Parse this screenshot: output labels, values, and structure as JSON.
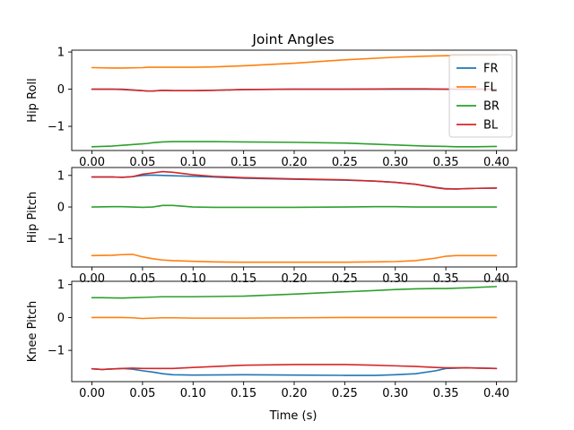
{
  "figure": {
    "title": "Joint Angles",
    "xlabel": "Time (s)"
  },
  "chart_data": [
    {
      "type": "line",
      "ylabel": "Hip Roll",
      "xlim": [
        -0.02,
        0.42
      ],
      "ylim": [
        -1.65,
        1.05
      ],
      "xticks": [
        0.0,
        0.05,
        0.1,
        0.15,
        0.2,
        0.25,
        0.3,
        0.35,
        0.4
      ],
      "xtick_labels": [
        "0.00",
        "0.05",
        "0.10",
        "0.15",
        "0.20",
        "0.25",
        "0.30",
        "0.35",
        "0.40"
      ],
      "yticks": [
        1,
        0,
        -1
      ],
      "ytick_labels": [
        "1",
        "0",
        "−1"
      ],
      "legend": {
        "position": "right",
        "entries": [
          "FR",
          "FL",
          "BR",
          "BL"
        ]
      },
      "x": [
        0.0,
        0.02,
        0.03,
        0.05,
        0.055,
        0.06,
        0.07,
        0.08,
        0.1,
        0.12,
        0.15,
        0.2,
        0.25,
        0.3,
        0.33,
        0.35,
        0.36,
        0.38,
        0.4
      ],
      "series": [
        {
          "name": "FR",
          "color": "#1f77b4",
          "values": [
            0.0,
            0.0,
            0.0,
            -0.04,
            -0.05,
            -0.05,
            -0.03,
            -0.04,
            -0.04,
            -0.03,
            -0.01,
            0.0,
            0.0,
            0.0,
            0.0,
            0.0,
            0.0,
            0.0,
            0.0
          ]
        },
        {
          "name": "FL",
          "color": "#ff7f0e",
          "values": [
            0.58,
            0.57,
            0.57,
            0.58,
            0.59,
            0.59,
            0.59,
            0.59,
            0.59,
            0.6,
            0.63,
            0.7,
            0.79,
            0.86,
            0.89,
            0.9,
            0.91,
            0.92,
            0.92
          ]
        },
        {
          "name": "BR",
          "color": "#2ca02c",
          "values": [
            -1.55,
            -1.53,
            -1.51,
            -1.47,
            -1.46,
            -1.44,
            -1.42,
            -1.41,
            -1.41,
            -1.41,
            -1.42,
            -1.43,
            -1.45,
            -1.5,
            -1.53,
            -1.54,
            -1.55,
            -1.55,
            -1.54
          ]
        },
        {
          "name": "BL",
          "color": "#d62728",
          "values": [
            0.0,
            0.0,
            -0.01,
            -0.04,
            -0.05,
            -0.05,
            -0.03,
            -0.04,
            -0.04,
            -0.03,
            -0.01,
            0.0,
            0.0,
            0.01,
            0.01,
            0.0,
            0.0,
            0.0,
            0.0
          ]
        }
      ]
    },
    {
      "type": "line",
      "ylabel": "Hip Pitch",
      "xlim": [
        -0.02,
        0.42
      ],
      "ylim": [
        -1.9,
        1.25
      ],
      "xticks": [
        0.0,
        0.05,
        0.1,
        0.15,
        0.2,
        0.25,
        0.3,
        0.35,
        0.4
      ],
      "xtick_labels": [
        "0.00",
        "0.05",
        "0.10",
        "0.15",
        "0.20",
        "0.25",
        "0.30",
        "0.35",
        "0.40"
      ],
      "yticks": [
        1,
        0,
        -1
      ],
      "ytick_labels": [
        "1",
        "0",
        "−1"
      ],
      "x": [
        0.0,
        0.02,
        0.03,
        0.04,
        0.05,
        0.06,
        0.07,
        0.08,
        0.1,
        0.12,
        0.15,
        0.2,
        0.25,
        0.28,
        0.3,
        0.32,
        0.34,
        0.35,
        0.36,
        0.38,
        0.4
      ],
      "series": [
        {
          "name": "FR",
          "color": "#1f77b4",
          "values": [
            0.95,
            0.95,
            0.94,
            0.96,
            1.0,
            1.01,
            1.0,
            0.99,
            0.97,
            0.95,
            0.91,
            0.88,
            0.85,
            0.82,
            0.78,
            0.72,
            0.62,
            0.58,
            0.57,
            0.59,
            0.6
          ]
        },
        {
          "name": "FL",
          "color": "#ff7f0e",
          "values": [
            -1.54,
            -1.53,
            -1.51,
            -1.5,
            -1.58,
            -1.64,
            -1.68,
            -1.7,
            -1.72,
            -1.74,
            -1.75,
            -1.75,
            -1.75,
            -1.74,
            -1.73,
            -1.7,
            -1.62,
            -1.56,
            -1.54,
            -1.54,
            -1.54
          ]
        },
        {
          "name": "BR",
          "color": "#2ca02c",
          "values": [
            0.0,
            0.01,
            0.01,
            0.0,
            -0.01,
            0.0,
            0.05,
            0.05,
            0.0,
            -0.01,
            -0.01,
            -0.01,
            0.0,
            0.01,
            0.01,
            0.0,
            0.0,
            0.0,
            0.0,
            0.0,
            0.0
          ]
        },
        {
          "name": "BL",
          "color": "#d62728",
          "values": [
            0.95,
            0.95,
            0.94,
            0.96,
            1.04,
            1.08,
            1.12,
            1.1,
            1.02,
            0.97,
            0.93,
            0.89,
            0.86,
            0.82,
            0.78,
            0.72,
            0.61,
            0.57,
            0.57,
            0.59,
            0.6
          ]
        }
      ]
    },
    {
      "type": "line",
      "ylabel": "Knee Pitch",
      "xlim": [
        -0.02,
        0.42
      ],
      "ylim": [
        -1.95,
        1.1
      ],
      "xticks": [
        0.0,
        0.05,
        0.1,
        0.15,
        0.2,
        0.25,
        0.3,
        0.35,
        0.4
      ],
      "xtick_labels": [
        "0.00",
        "0.05",
        "0.10",
        "0.15",
        "0.20",
        "0.25",
        "0.30",
        "0.35",
        "0.40"
      ],
      "yticks": [
        1,
        0,
        -1
      ],
      "ytick_labels": [
        "1",
        "0",
        "−1"
      ],
      "x": [
        0.0,
        0.01,
        0.03,
        0.04,
        0.05,
        0.06,
        0.07,
        0.08,
        0.1,
        0.15,
        0.2,
        0.25,
        0.28,
        0.3,
        0.32,
        0.34,
        0.35,
        0.37,
        0.4
      ],
      "series": [
        {
          "name": "FR",
          "color": "#1f77b4",
          "values": [
            -1.56,
            -1.58,
            -1.55,
            -1.57,
            -1.62,
            -1.66,
            -1.71,
            -1.74,
            -1.75,
            -1.74,
            -1.75,
            -1.76,
            -1.76,
            -1.74,
            -1.71,
            -1.62,
            -1.55,
            -1.53,
            -1.55
          ]
        },
        {
          "name": "FL",
          "color": "#ff7f0e",
          "values": [
            0.0,
            0.0,
            0.0,
            -0.01,
            -0.03,
            -0.02,
            -0.01,
            -0.01,
            -0.02,
            -0.02,
            -0.01,
            0.0,
            0.0,
            0.0,
            0.0,
            0.0,
            0.0,
            0.0,
            0.0
          ]
        },
        {
          "name": "BR",
          "color": "#2ca02c",
          "values": [
            0.6,
            0.6,
            0.59,
            0.6,
            0.61,
            0.62,
            0.63,
            0.63,
            0.63,
            0.65,
            0.71,
            0.78,
            0.82,
            0.85,
            0.87,
            0.88,
            0.88,
            0.9,
            0.94
          ]
        },
        {
          "name": "BL",
          "color": "#d62728",
          "values": [
            -1.56,
            -1.58,
            -1.55,
            -1.54,
            -1.55,
            -1.55,
            -1.55,
            -1.55,
            -1.52,
            -1.45,
            -1.43,
            -1.43,
            -1.45,
            -1.47,
            -1.49,
            -1.52,
            -1.53,
            -1.53,
            -1.55
          ]
        }
      ]
    }
  ]
}
